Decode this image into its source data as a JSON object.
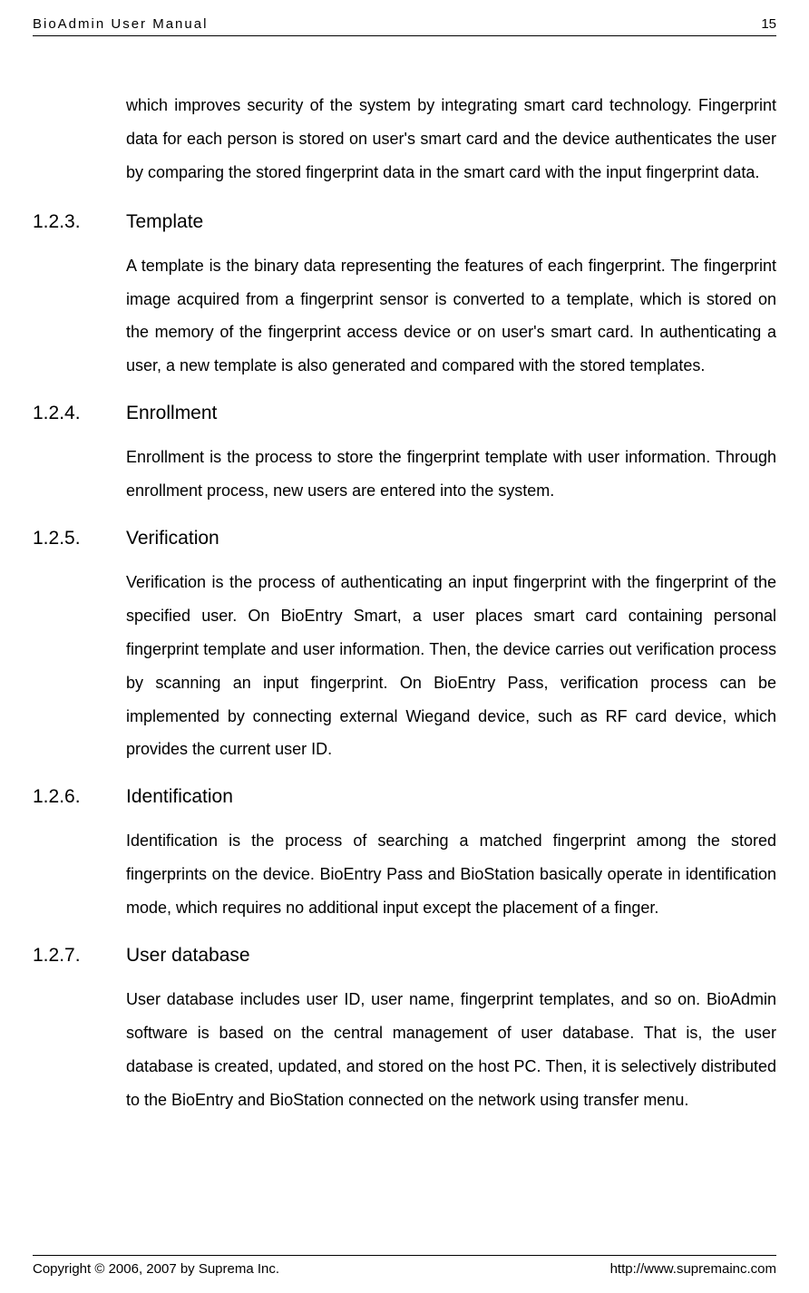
{
  "header": {
    "doc_title": "BioAdmin User Manual",
    "page_number": "15"
  },
  "intro": {
    "text": "which improves security of the system by integrating smart card technology. Fingerprint data for each person is stored on user's smart card and the device authenticates the user by comparing the stored fingerprint data in the smart card with the input fingerprint data."
  },
  "sections": [
    {
      "number": "1.2.3.",
      "title": "Template",
      "body": "A template is the binary data representing the features of each fingerprint. The fingerprint image acquired from a fingerprint sensor is converted to a template, which is stored on the memory of the fingerprint access device or on user's smart card. In authenticating a user, a new template is also generated and compared with the stored templates."
    },
    {
      "number": "1.2.4.",
      "title": "Enrollment",
      "body": "Enrollment is the process to store the fingerprint template with user information. Through enrollment process, new users are entered into the system."
    },
    {
      "number": "1.2.5.",
      "title": "Verification",
      "body": "Verification is the process of authenticating an input fingerprint with the fingerprint of the specified user. On BioEntry Smart, a user places smart card containing personal fingerprint template and user information. Then, the device carries out verification process by scanning an input fingerprint. On BioEntry Pass, verification process can be implemented by connecting external Wiegand device, such as RF card device, which provides the current user ID."
    },
    {
      "number": "1.2.6.",
      "title": "Identification",
      "body": "Identification is the process of searching a matched fingerprint among the stored fingerprints on the device. BioEntry Pass and BioStation basically operate in identification mode, which requires no additional input except the placement of a finger."
    },
    {
      "number": "1.2.7.",
      "title": "User database",
      "body": "User database includes user ID, user name, fingerprint templates, and so on. BioAdmin software is based on the central management of user database. That is, the user database is created, updated, and stored on the host PC. Then, it is selectively distributed to the BioEntry and BioStation connected on the network using transfer menu."
    }
  ],
  "footer": {
    "copyright": "Copyright © 2006, 2007 by Suprema Inc.",
    "url": "http://www.supremainc.com"
  }
}
